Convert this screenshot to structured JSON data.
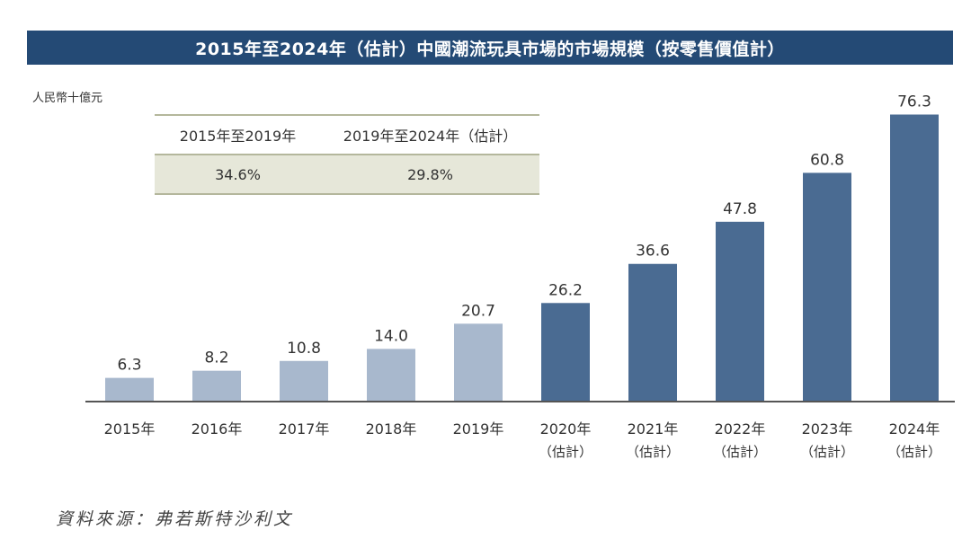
{
  "title": "2015年至2024年（估計）中國潮流玩具市場的市場規模（按零售價值計）",
  "unit": "人民幣十億元",
  "cagr_table": {
    "headers": [
      "2015年至2019年",
      "2019年至2024年（估計）"
    ],
    "values": [
      "34.6%",
      "29.8%"
    ]
  },
  "source": "資料來源：弗若斯特沙利文",
  "colors": {
    "title_bg": "#244a75",
    "bar_historical": "#a8b8cd",
    "bar_estimate": "#4a6b92",
    "axis": "#555555",
    "table_bg": "#e6e7d9",
    "table_rule": "#b4b79c"
  },
  "chart_data": {
    "type": "bar",
    "title": "2015年至2024年（估計）中國潮流玩具市場的市場規模（按零售價值計）",
    "ylabel": "人民幣十億元",
    "xlabel": "",
    "ylim": [
      0,
      80
    ],
    "categories": [
      "2015年",
      "2016年",
      "2017年",
      "2018年",
      "2019年",
      "2020年",
      "2021年",
      "2022年",
      "2023年",
      "2024年"
    ],
    "category_sublabels": [
      "",
      "",
      "",
      "",
      "",
      "（估計）",
      "（估計）",
      "（估計）",
      "（估計）",
      "（估計）"
    ],
    "values": [
      6.3,
      8.2,
      10.8,
      14.0,
      20.7,
      26.2,
      36.6,
      47.8,
      60.8,
      76.3
    ],
    "value_labels": [
      "6.3",
      "8.2",
      "10.8",
      "14.0",
      "20.7",
      "26.2",
      "36.6",
      "47.8",
      "60.8",
      "76.3"
    ],
    "estimate": [
      false,
      false,
      false,
      false,
      false,
      true,
      true,
      true,
      true,
      true
    ],
    "grid": false
  }
}
